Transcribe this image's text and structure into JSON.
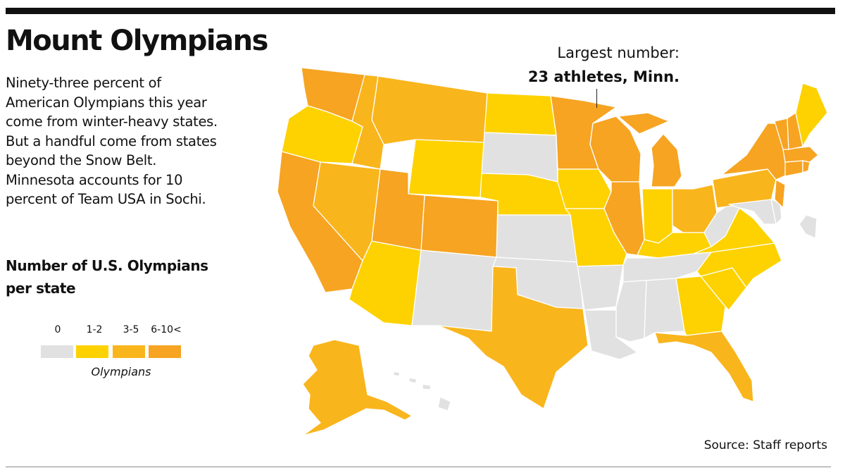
{
  "title": "Mount Olympians",
  "description": [
    "Ninety-three percent of",
    "American Olympians this year",
    "come from winter-heavy states.",
    "But a handful come from states",
    "beyond the Snow Belt.",
    "Minnesota accounts for 10",
    "percent of Team USA in Sochi."
  ],
  "legend": {
    "title": [
      "Number of U.S. Olympians",
      "per state"
    ],
    "categories": [
      {
        "label": "0",
        "color": "#e1e1e1"
      },
      {
        "label": "1-2",
        "color": "#fdd200"
      },
      {
        "label": "3-5",
        "color": "#f9b51c"
      },
      {
        "label": "6-10<",
        "color": "#f6a422"
      }
    ],
    "caption": "Olympians"
  },
  "callout": {
    "line1": "Largest number:",
    "line2": "23 athletes, Minn."
  },
  "source": "Source: Staff reports",
  "map_data": {
    "type": "choropleth",
    "states": {
      "WA": "6-10<",
      "OR": "1-2",
      "CA": "6-10<",
      "ID": "3-5",
      "NV": "3-5",
      "AZ": "1-2",
      "MT": "3-5",
      "WY": "1-2",
      "UT": "6-10<",
      "CO": "6-10<",
      "NM": "0",
      "ND": "1-2",
      "SD": "0",
      "NE": "1-2",
      "KS": "0",
      "OK": "0",
      "TX": "3-5",
      "MN": "6-10<",
      "IA": "1-2",
      "MO": "1-2",
      "AR": "0",
      "LA": "0",
      "WI": "6-10<",
      "IL": "6-10<",
      "MS": "0",
      "MI": "6-10<",
      "IN": "1-2",
      "KY": "1-2",
      "TN": "0",
      "AL": "0",
      "OH": "3-5",
      "WV": "0",
      "VA": "1-2",
      "NC": "1-2",
      "SC": "1-2",
      "GA": "1-2",
      "FL": "3-5",
      "PA": "3-5",
      "NY": "6-10<",
      "VT": "6-10<",
      "NH": "6-10<",
      "ME": "1-2",
      "MA": "6-10<",
      "CT": "6-10<",
      "RI": "6-10<",
      "NJ": "6-10<",
      "DE": "0",
      "MD": "0",
      "DC": "0",
      "AK": "3-5",
      "HI": "0"
    }
  }
}
